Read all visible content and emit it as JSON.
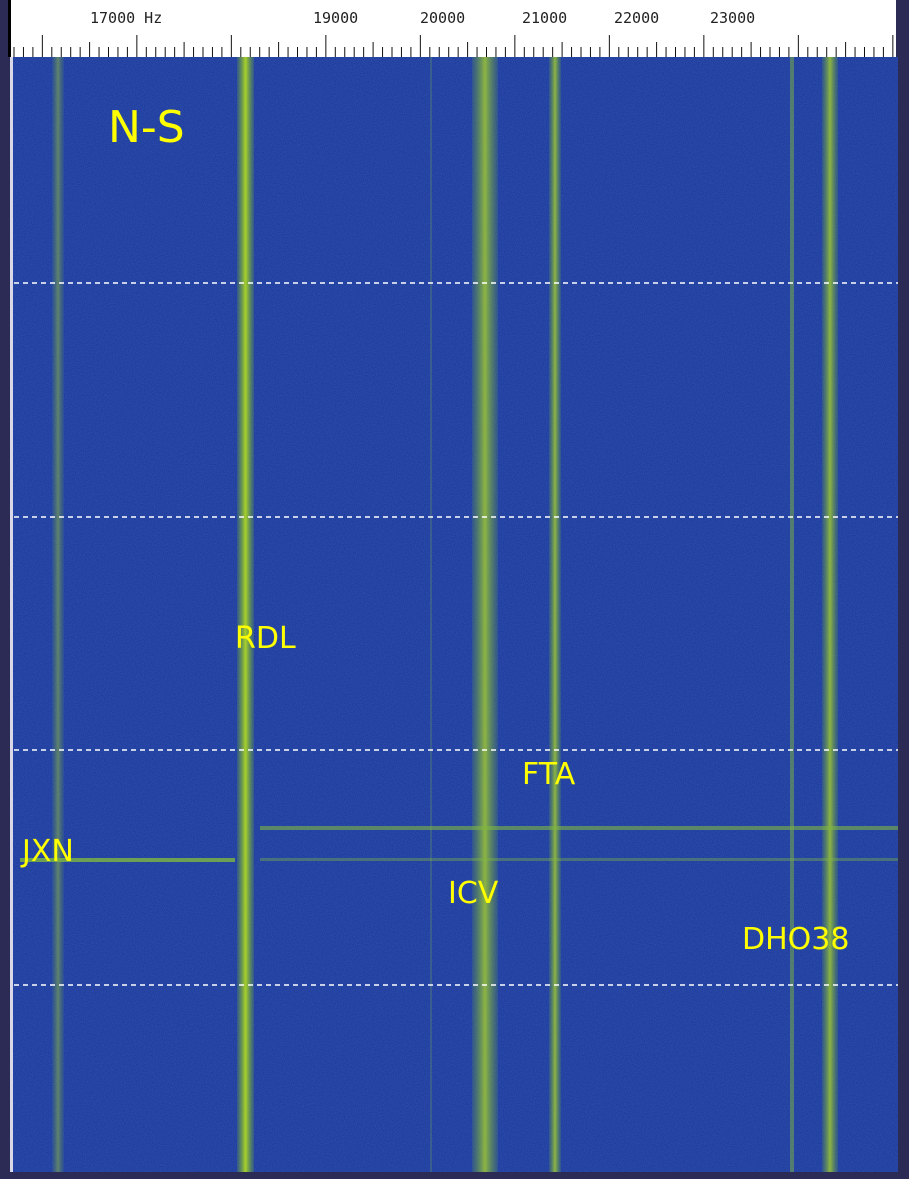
{
  "ruler": {
    "labels": [
      "17000 Hz",
      "19000",
      "20000",
      "21000",
      "22000",
      "23000"
    ]
  },
  "orientation": "N-S",
  "stations": [
    "RDL",
    "FTA",
    "JXN",
    "ICV",
    "DHO38"
  ]
}
